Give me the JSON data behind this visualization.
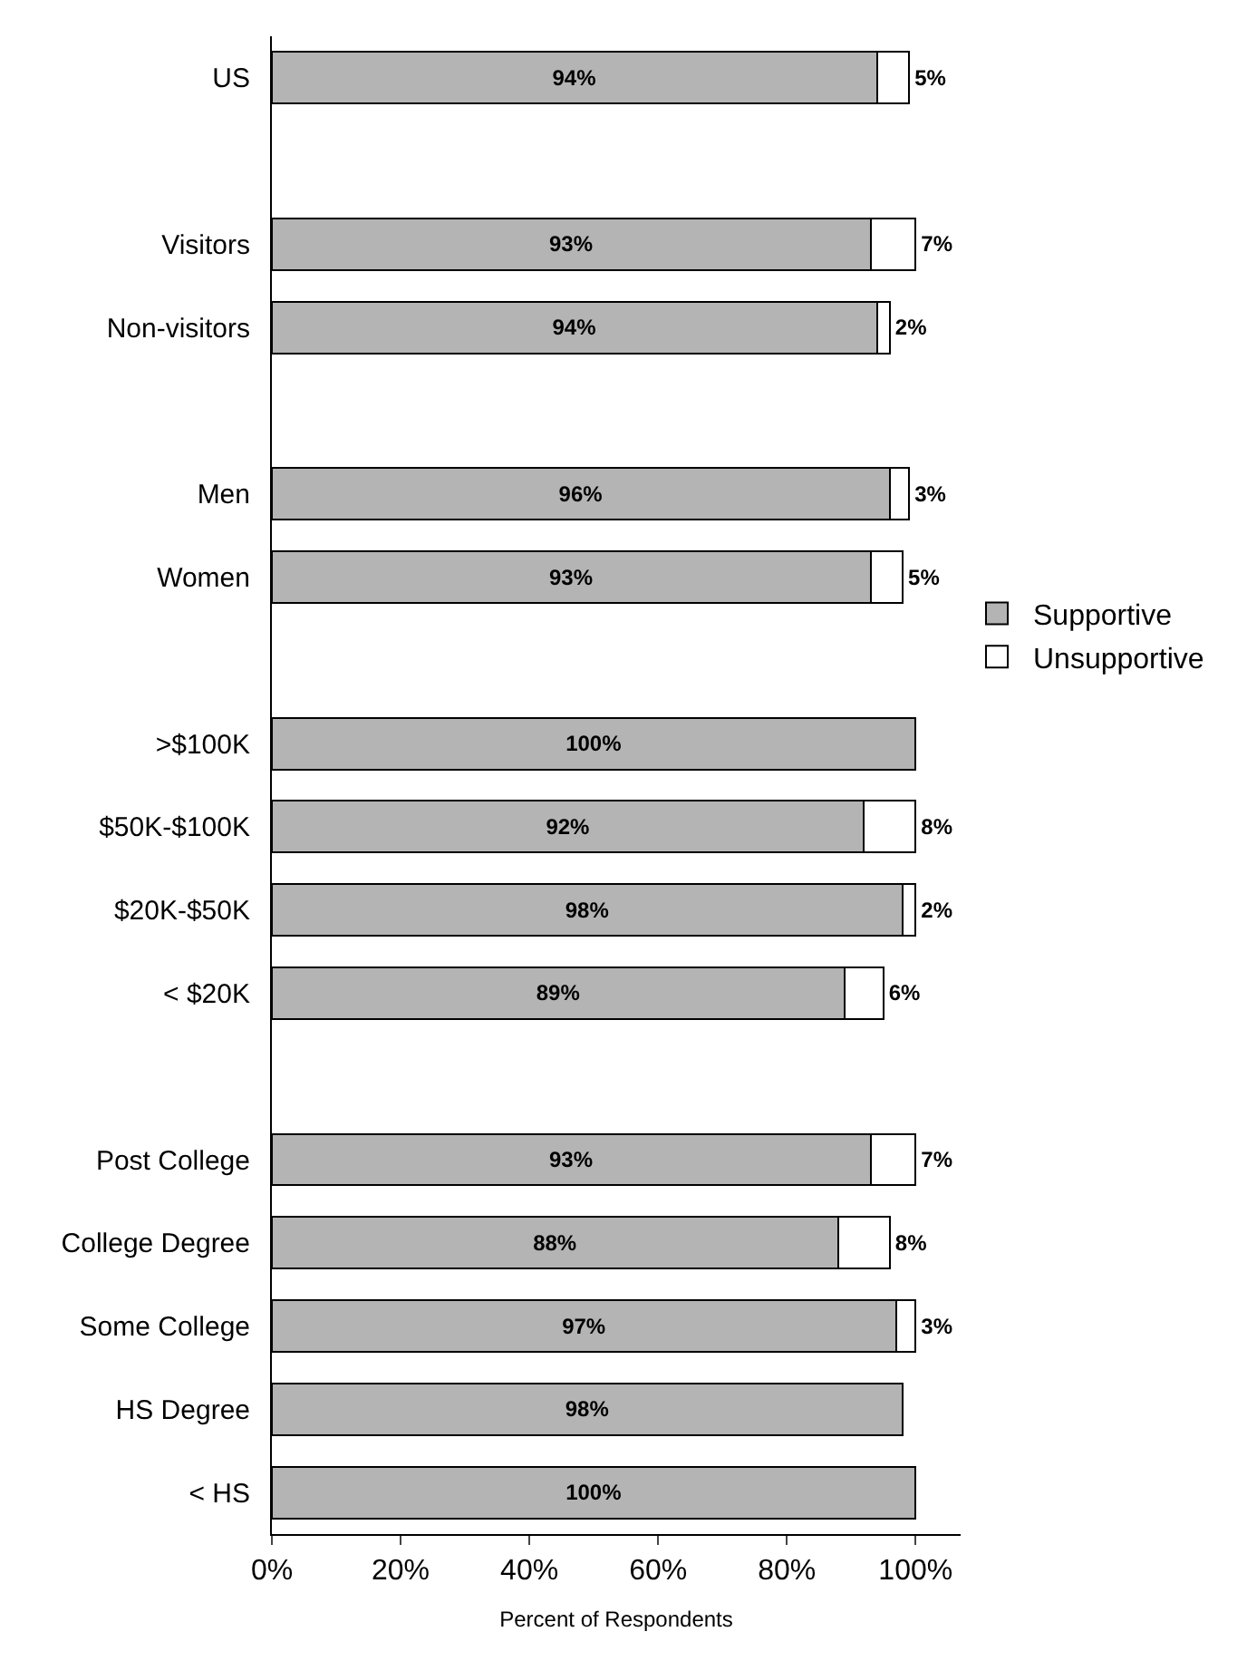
{
  "chart_data": {
    "type": "bar",
    "orientation": "horizontal",
    "stacked": true,
    "xlabel": "Percent of Respondents",
    "categories": [
      "US",
      null,
      "Visitors",
      "Non-visitors",
      null,
      "Men",
      "Women",
      null,
      ">$100K",
      "$50K-$100K",
      "$20K-$50K",
      "< $20K",
      null,
      "Post College",
      "College Degree",
      "Some College",
      "HS Degree",
      "< HS"
    ],
    "series": [
      {
        "name": "Supportive",
        "color": "#b4b4b4",
        "values": [
          94,
          null,
          93,
          94,
          null,
          96,
          93,
          null,
          100,
          92,
          98,
          89,
          null,
          93,
          88,
          97,
          98,
          100
        ],
        "value_labels": [
          "94%",
          null,
          "93%",
          "94%",
          null,
          "96%",
          "93%",
          null,
          "100%",
          "92%",
          "98%",
          "89%",
          null,
          "93%",
          "88%",
          "97%",
          "98%",
          "100%"
        ]
      },
      {
        "name": "Unsupportive",
        "color": "#ffffff",
        "values": [
          5,
          null,
          7,
          2,
          null,
          3,
          5,
          null,
          null,
          8,
          2,
          6,
          null,
          7,
          8,
          3,
          null,
          null
        ],
        "value_labels": [
          "5%",
          null,
          "7%",
          "2%",
          null,
          "3%",
          "5%",
          null,
          null,
          "8%",
          "2%",
          "6%",
          null,
          "7%",
          "8%",
          "3%",
          null,
          null
        ]
      }
    ],
    "xlim": [
      0,
      107
    ],
    "xticks": [
      {
        "value": 0,
        "label": "0%"
      },
      {
        "value": 20,
        "label": "20%"
      },
      {
        "value": 40,
        "label": "40%"
      },
      {
        "value": 60,
        "label": "60%"
      },
      {
        "value": 80,
        "label": "80%"
      },
      {
        "value": 100,
        "label": "100%"
      }
    ],
    "grid": false,
    "legend": "right"
  }
}
